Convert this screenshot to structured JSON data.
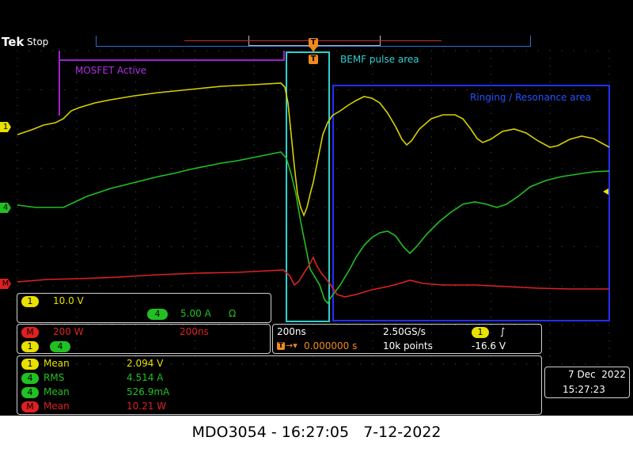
{
  "header": {
    "brand": "Tek",
    "run_state": "Stop"
  },
  "annotations": {
    "mosfet_label": "MOSFET Active",
    "bemf_label": "BEMF pulse area",
    "ringing_label": "Ringing / Resonance area"
  },
  "markers": {
    "trigger_marker": "T",
    "ch1_marker": "1",
    "ch4_marker": "4",
    "math_marker": "M"
  },
  "channels": {
    "ch1": {
      "badge": "1",
      "scale": "10.0 V",
      "color": "#e8e000"
    },
    "ch4": {
      "badge": "4",
      "scale": "5.00 A",
      "ohm": "Ω",
      "color": "#22c022"
    },
    "math": {
      "badge": "M",
      "scale": "200 W",
      "time": "200ns",
      "color": "#e02020",
      "sources": [
        "1",
        "4"
      ]
    }
  },
  "horizontal": {
    "timebase": "200ns",
    "sample_rate": "2.50GS/s",
    "position": "0.000000 s",
    "record_length": "10k points",
    "trigger_channel": "1",
    "trigger_slope": "∫",
    "trigger_level": "-16.6 V"
  },
  "measurements": [
    {
      "src": "1",
      "name": "Mean",
      "value": "2.094 V",
      "color": "#e8e000"
    },
    {
      "src": "4",
      "name": "RMS",
      "value": "4.514 A",
      "color": "#22c022"
    },
    {
      "src": "4",
      "name": "Mean",
      "value": "526.9mA",
      "color": "#22c022"
    },
    {
      "src": "M",
      "name": "Mean",
      "value": "10.21 W",
      "color": "#e02020"
    }
  ],
  "datetime": {
    "date": "7 Dec  2022",
    "time": "15:27:23"
  },
  "caption": "MDO3054 - 16:27:05   7-12-2022"
}
